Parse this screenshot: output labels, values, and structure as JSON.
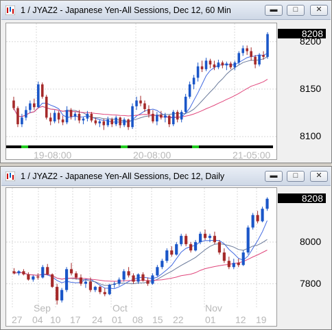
{
  "windows": [
    {
      "title": "1 / JYAZ2 - Japanese Yen-All Sessions, Dec 12, 60 Min",
      "last_price": "8208",
      "colors": {
        "up": "#1a56c8",
        "down": "#a52a2a",
        "ma_fast": "#4169e1",
        "ma_mid": "#6a7a9a",
        "ma_slow": "#e0457b",
        "session_bar": "#000000",
        "session_green": "#22cc22"
      },
      "chart_data": {
        "type": "candlestick",
        "ylim": [
          8095,
          8215
        ],
        "y_ticks": [
          "8200",
          "8150",
          "8100"
        ],
        "x_labels": [
          "19-08:00",
          "20-08:00",
          "21-05:00"
        ],
        "grid": true,
        "candles": [
          [
            8138,
            8142,
            8128,
            8130
          ],
          [
            8130,
            8132,
            8110,
            8113
          ],
          [
            8113,
            8124,
            8110,
            8120
          ],
          [
            8120,
            8132,
            8117,
            8128
          ],
          [
            8128,
            8138,
            8125,
            8135
          ],
          [
            8135,
            8140,
            8128,
            8131
          ],
          [
            8131,
            8158,
            8130,
            8155
          ],
          [
            8155,
            8157,
            8140,
            8142
          ],
          [
            8142,
            8144,
            8118,
            8120
          ],
          [
            8120,
            8125,
            8112,
            8116
          ],
          [
            8116,
            8128,
            8114,
            8125
          ],
          [
            8125,
            8127,
            8114,
            8118
          ],
          [
            8118,
            8122,
            8112,
            8115
          ],
          [
            8115,
            8132,
            8113,
            8128
          ],
          [
            8128,
            8130,
            8118,
            8121
          ],
          [
            8121,
            8126,
            8117,
            8124
          ],
          [
            8124,
            8128,
            8114,
            8117
          ],
          [
            8117,
            8121,
            8113,
            8119
          ],
          [
            8119,
            8127,
            8116,
            8124
          ],
          [
            8124,
            8126,
            8115,
            8117
          ],
          [
            8117,
            8120,
            8112,
            8114
          ],
          [
            8114,
            8118,
            8110,
            8116
          ],
          [
            8116,
            8119,
            8107,
            8112
          ],
          [
            8112,
            8121,
            8110,
            8118
          ],
          [
            8118,
            8120,
            8110,
            8113
          ],
          [
            8113,
            8122,
            8111,
            8120
          ],
          [
            8120,
            8121,
            8109,
            8112
          ],
          [
            8112,
            8120,
            8110,
            8118
          ],
          [
            8118,
            8119,
            8107,
            8110
          ],
          [
            8110,
            8135,
            8108,
            8132
          ],
          [
            8132,
            8142,
            8128,
            8138
          ],
          [
            8138,
            8143,
            8132,
            8135
          ],
          [
            8135,
            8138,
            8126,
            8129
          ],
          [
            8129,
            8133,
            8120,
            8124
          ],
          [
            8124,
            8128,
            8114,
            8116
          ],
          [
            8116,
            8126,
            8112,
            8123
          ],
          [
            8123,
            8127,
            8118,
            8120
          ],
          [
            8120,
            8125,
            8115,
            8122
          ],
          [
            8122,
            8123,
            8110,
            8113
          ],
          [
            8113,
            8128,
            8111,
            8126
          ],
          [
            8126,
            8128,
            8115,
            8118
          ],
          [
            8118,
            8128,
            8115,
            8126
          ],
          [
            8126,
            8145,
            8124,
            8142
          ],
          [
            8142,
            8158,
            8140,
            8155
          ],
          [
            8155,
            8165,
            8150,
            8162
          ],
          [
            8162,
            8178,
            8158,
            8174
          ],
          [
            8174,
            8180,
            8168,
            8171
          ],
          [
            8171,
            8183,
            8169,
            8180
          ],
          [
            8180,
            8182,
            8172,
            8176
          ],
          [
            8176,
            8180,
            8170,
            8173
          ],
          [
            8173,
            8181,
            8171,
            8178
          ],
          [
            8178,
            8180,
            8172,
            8175
          ],
          [
            8175,
            8179,
            8170,
            8177
          ],
          [
            8177,
            8179,
            8171,
            8173
          ],
          [
            8173,
            8180,
            8170,
            8178
          ],
          [
            8178,
            8190,
            8176,
            8188
          ],
          [
            8188,
            8196,
            8185,
            8193
          ],
          [
            8193,
            8196,
            8186,
            8190
          ],
          [
            8190,
            8194,
            8180,
            8184
          ],
          [
            8184,
            8186,
            8172,
            8176
          ],
          [
            8176,
            8188,
            8174,
            8186
          ],
          [
            8186,
            8190,
            8181,
            8184
          ],
          [
            8184,
            8210,
            8182,
            8208
          ]
        ]
      }
    },
    {
      "title": "1 / JYAZ2 - Japanese Yen-All Sessions, Dec 12, Daily",
      "last_price": "8208",
      "colors": {
        "up": "#1a56c8",
        "down": "#a52a2a",
        "ma_fast": "#4169e1",
        "ma_mid": "#6a7a9a",
        "ma_slow": "#e0457b"
      },
      "chart_data": {
        "type": "candlestick",
        "ylim": [
          7680,
          8240
        ],
        "y_ticks": [
          "8000",
          "7800"
        ],
        "x_month_labels": [
          "Sep",
          "Oct",
          "Nov"
        ],
        "x_day_labels": [
          "27",
          "04",
          "10",
          "17",
          "24",
          "01",
          "08",
          "15",
          "22",
          "01",
          "12",
          "19"
        ],
        "grid": true,
        "candles": [
          [
            7860,
            7875,
            7845,
            7850
          ],
          [
            7850,
            7865,
            7840,
            7860
          ],
          [
            7860,
            7870,
            7840,
            7845
          ],
          [
            7845,
            7855,
            7815,
            7820
          ],
          [
            7820,
            7840,
            7810,
            7835
          ],
          [
            7835,
            7850,
            7820,
            7830
          ],
          [
            7830,
            7890,
            7825,
            7880
          ],
          [
            7880,
            7895,
            7840,
            7845
          ],
          [
            7845,
            7850,
            7780,
            7785
          ],
          [
            7785,
            7800,
            7700,
            7720
          ],
          [
            7720,
            7780,
            7710,
            7770
          ],
          [
            7770,
            7880,
            7760,
            7870
          ],
          [
            7870,
            7900,
            7840,
            7850
          ],
          [
            7850,
            7860,
            7820,
            7830
          ],
          [
            7830,
            7845,
            7790,
            7800
          ],
          [
            7800,
            7820,
            7780,
            7810
          ],
          [
            7810,
            7830,
            7760,
            7770
          ],
          [
            7770,
            7790,
            7760,
            7785
          ],
          [
            7785,
            7790,
            7750,
            7760
          ],
          [
            7760,
            7780,
            7740,
            7750
          ],
          [
            7750,
            7800,
            7745,
            7795
          ],
          [
            7795,
            7810,
            7780,
            7800
          ],
          [
            7800,
            7830,
            7790,
            7820
          ],
          [
            7820,
            7870,
            7810,
            7860
          ],
          [
            7860,
            7880,
            7830,
            7840
          ],
          [
            7840,
            7850,
            7800,
            7810
          ],
          [
            7810,
            7850,
            7800,
            7845
          ],
          [
            7845,
            7855,
            7810,
            7815
          ],
          [
            7815,
            7830,
            7790,
            7800
          ],
          [
            7800,
            7850,
            7795,
            7840
          ],
          [
            7840,
            7890,
            7835,
            7880
          ],
          [
            7880,
            7920,
            7870,
            7910
          ],
          [
            7910,
            7970,
            7900,
            7960
          ],
          [
            7960,
            7980,
            7930,
            7940
          ],
          [
            7940,
            8000,
            7935,
            7990
          ],
          [
            7990,
            8040,
            7980,
            8030
          ],
          [
            8030,
            8040,
            7980,
            7990
          ],
          [
            7990,
            8000,
            7950,
            7960
          ],
          [
            7960,
            8010,
            7955,
            8000
          ],
          [
            8000,
            8050,
            7990,
            8040
          ],
          [
            8040,
            8060,
            8010,
            8020
          ],
          [
            8020,
            8040,
            8000,
            8030
          ],
          [
            8030,
            8050,
            7990,
            8000
          ],
          [
            8000,
            8010,
            7940,
            7950
          ],
          [
            7950,
            7970,
            7900,
            7910
          ],
          [
            7910,
            7930,
            7870,
            7880
          ],
          [
            7880,
            7920,
            7870,
            7900
          ],
          [
            7900,
            7920,
            7880,
            7890
          ],
          [
            7890,
            7960,
            7885,
            7950
          ],
          [
            7950,
            8080,
            7940,
            8070
          ],
          [
            8070,
            8140,
            8060,
            8130
          ],
          [
            8130,
            8150,
            8090,
            8100
          ],
          [
            8100,
            8170,
            8095,
            8160
          ],
          [
            8160,
            8215,
            8150,
            8208
          ]
        ]
      }
    }
  ]
}
